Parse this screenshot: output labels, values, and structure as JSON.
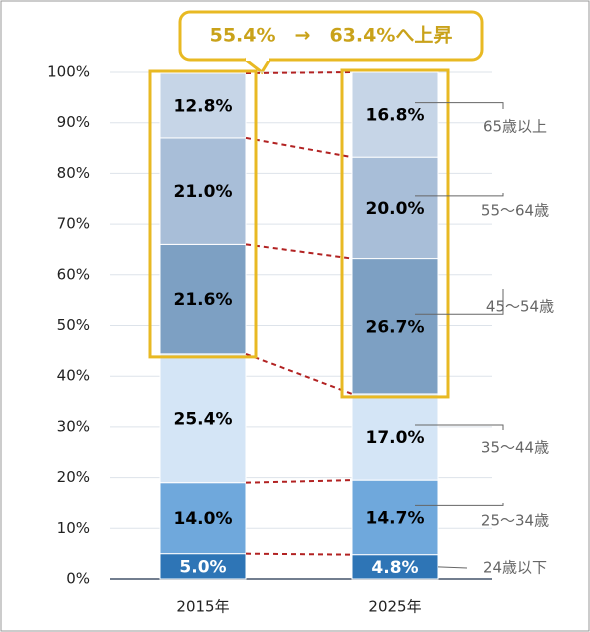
{
  "chart_data": {
    "type": "stacked_bar",
    "annotation": "55.4%　→　63.4%へ上昇",
    "categories": [
      "2015年",
      "2025年"
    ],
    "series": [
      {
        "name": "24歳以下",
        "color": "#2e75b6",
        "label_color": "#ffffff",
        "values": [
          5.0,
          4.8
        ],
        "value_labels": [
          "5.0%",
          "4.8%"
        ]
      },
      {
        "name": "25～34歳",
        "color": "#6fa8dc",
        "label_color": "#000000",
        "values": [
          14.0,
          14.7
        ],
        "value_labels": [
          "14.0%",
          "14.7%"
        ]
      },
      {
        "name": "35～44歳",
        "color": "#d4e5f6",
        "label_color": "#000000",
        "values": [
          25.4,
          17.0
        ],
        "value_labels": [
          "25.4%",
          "17.0%"
        ]
      },
      {
        "name": "45～54歳",
        "color": "#7da0c3",
        "label_color": "#000000",
        "values": [
          21.6,
          26.7
        ],
        "value_labels": [
          "21.6%",
          "26.7%"
        ]
      },
      {
        "name": "55～64歳",
        "color": "#a8bed8",
        "label_color": "#000000",
        "values": [
          21.0,
          20.0
        ],
        "value_labels": [
          "21.0%",
          "20.0%"
        ]
      },
      {
        "name": "65歳以上",
        "color": "#c6d5e7",
        "label_color": "#000000",
        "values": [
          12.8,
          16.8
        ],
        "value_labels": [
          "12.8%",
          "16.8%"
        ]
      }
    ],
    "ylim": [
      0,
      100
    ],
    "yticks": [
      {
        "value": 0,
        "label": "0%"
      },
      {
        "value": 10,
        "label": "10%"
      },
      {
        "value": 20,
        "label": "20%"
      },
      {
        "value": 30,
        "label": "30%"
      },
      {
        "value": 40,
        "label": "40%"
      },
      {
        "value": 50,
        "label": "50%"
      },
      {
        "value": 60,
        "label": "60%"
      },
      {
        "value": 70,
        "label": "70%"
      },
      {
        "value": 80,
        "label": "80%"
      },
      {
        "value": 90,
        "label": "90%"
      },
      {
        "value": 100,
        "label": "100%"
      }
    ],
    "grid": true
  }
}
